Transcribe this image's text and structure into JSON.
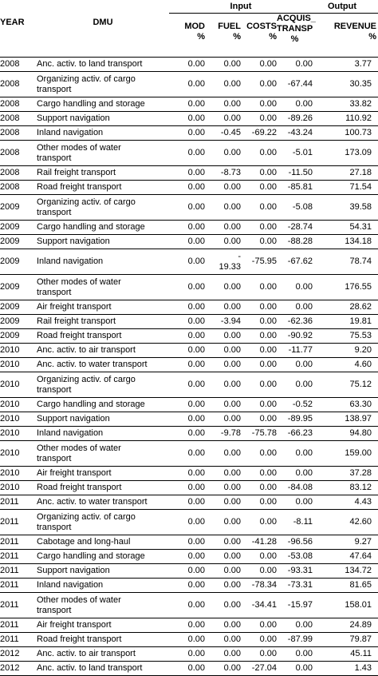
{
  "header": {
    "group_input": "Input",
    "group_output": "Output",
    "year": "YEAR",
    "dmu": "DMU",
    "mod": [
      "MOD",
      "%"
    ],
    "fuel": [
      "FUEL",
      "%"
    ],
    "costs": [
      "COSTS",
      "%"
    ],
    "acquis": [
      "ACQUIS_",
      "TRANSP",
      "%"
    ],
    "revenue": [
      "REVENUE",
      "%"
    ]
  },
  "rows": [
    {
      "year": "2008",
      "dmu": [
        "Anc. activ. to land transport"
      ],
      "mod": "0.00",
      "fuel": [
        "0.00"
      ],
      "costs": "0.00",
      "acquis": "0.00",
      "revenue": "3.77"
    },
    {
      "year": "2008",
      "dmu": [
        "Organizing activ. of cargo",
        "transport"
      ],
      "mod": "0.00",
      "fuel": [
        "0.00"
      ],
      "costs": "0.00",
      "acquis": "-67.44",
      "revenue": "30.35"
    },
    {
      "year": "2008",
      "dmu": [
        "Cargo handling and storage"
      ],
      "mod": "0.00",
      "fuel": [
        "0.00"
      ],
      "costs": "0.00",
      "acquis": "0.00",
      "revenue": "33.82"
    },
    {
      "year": "2008",
      "dmu": [
        "Support navigation"
      ],
      "mod": "0.00",
      "fuel": [
        "0.00"
      ],
      "costs": "0.00",
      "acquis": "-89.26",
      "revenue": "110.92"
    },
    {
      "year": "2008",
      "dmu": [
        "Inland navigation"
      ],
      "mod": "0.00",
      "fuel": [
        "-0.45"
      ],
      "costs": "-69.22",
      "acquis": "-43.24",
      "revenue": "100.73"
    },
    {
      "year": "2008",
      "dmu": [
        "Other modes of water",
        "transport"
      ],
      "mod": "0.00",
      "fuel": [
        "0.00"
      ],
      "costs": "0.00",
      "acquis": "-5.01",
      "revenue": "173.09"
    },
    {
      "year": "2008",
      "dmu": [
        "Rail freight transport"
      ],
      "mod": "0.00",
      "fuel": [
        "-8.73"
      ],
      "costs": "0.00",
      "acquis": "-11.50",
      "revenue": "27.18"
    },
    {
      "year": "2008",
      "dmu": [
        "Road freight transport"
      ],
      "mod": "0.00",
      "fuel": [
        "0.00"
      ],
      "costs": "0.00",
      "acquis": "-85.81",
      "revenue": "71.54"
    },
    {
      "year": "2009",
      "dmu": [
        "Organizing activ. of cargo",
        "transport"
      ],
      "mod": "0.00",
      "fuel": [
        "0.00"
      ],
      "costs": "0.00",
      "acquis": "-5.08",
      "revenue": "39.58"
    },
    {
      "year": "2009",
      "dmu": [
        "Cargo handling and storage"
      ],
      "mod": "0.00",
      "fuel": [
        "0.00"
      ],
      "costs": "0.00",
      "acquis": "-28.74",
      "revenue": "54.31"
    },
    {
      "year": "2009",
      "dmu": [
        "Support navigation"
      ],
      "mod": "0.00",
      "fuel": [
        "0.00"
      ],
      "costs": "0.00",
      "acquis": "-88.28",
      "revenue": "134.18"
    },
    {
      "year": "2009",
      "dmu": [
        "Inland navigation"
      ],
      "mod": "0.00",
      "fuel": [
        "-",
        "19.33"
      ],
      "costs": "-75.95",
      "acquis": "-67.62",
      "revenue": "78.74"
    },
    {
      "year": "2009",
      "dmu": [
        "Other modes of water",
        "transport"
      ],
      "mod": "0.00",
      "fuel": [
        "0.00"
      ],
      "costs": "0.00",
      "acquis": "0.00",
      "revenue": "176.55"
    },
    {
      "year": "2009",
      "dmu": [
        "Air freight transport"
      ],
      "mod": "0.00",
      "fuel": [
        "0.00"
      ],
      "costs": "0.00",
      "acquis": "0.00",
      "revenue": "28.62"
    },
    {
      "year": "2009",
      "dmu": [
        "Rail freight transport"
      ],
      "mod": "0.00",
      "fuel": [
        "-3.94"
      ],
      "costs": "0.00",
      "acquis": "-62.36",
      "revenue": "19.81"
    },
    {
      "year": "2009",
      "dmu": [
        "Road freight transport"
      ],
      "mod": "0.00",
      "fuel": [
        "0.00"
      ],
      "costs": "0.00",
      "acquis": "-90.92",
      "revenue": "75.53"
    },
    {
      "year": "2010",
      "dmu": [
        "Anc. activ. to air transport"
      ],
      "mod": "0.00",
      "fuel": [
        "0.00"
      ],
      "costs": "0.00",
      "acquis": "-11.77",
      "revenue": "9.20"
    },
    {
      "year": "2010",
      "dmu": [
        "Anc. activ. to water transport"
      ],
      "mod": "0.00",
      "fuel": [
        "0.00"
      ],
      "costs": "0.00",
      "acquis": "0.00",
      "revenue": "4.60"
    },
    {
      "year": "2010",
      "dmu": [
        "Organizing activ. of cargo",
        "transport"
      ],
      "mod": "0.00",
      "fuel": [
        "0.00"
      ],
      "costs": "0.00",
      "acquis": "0.00",
      "revenue": "75.12"
    },
    {
      "year": "2010",
      "dmu": [
        "Cargo handling and storage"
      ],
      "mod": "0.00",
      "fuel": [
        "0.00"
      ],
      "costs": "0.00",
      "acquis": "-0.52",
      "revenue": "63.30"
    },
    {
      "year": "2010",
      "dmu": [
        "Support navigation"
      ],
      "mod": "0.00",
      "fuel": [
        "0.00"
      ],
      "costs": "0.00",
      "acquis": "-89.95",
      "revenue": "138.97"
    },
    {
      "year": "2010",
      "dmu": [
        "Inland navigation"
      ],
      "mod": "0.00",
      "fuel": [
        "-9.78"
      ],
      "costs": "-75.78",
      "acquis": "-66.23",
      "revenue": "94.80"
    },
    {
      "year": "2010",
      "dmu": [
        "Other modes of water",
        "transport"
      ],
      "mod": "0.00",
      "fuel": [
        "0.00"
      ],
      "costs": "0.00",
      "acquis": "0.00",
      "revenue": "159.00"
    },
    {
      "year": "2010",
      "dmu": [
        "Air freight transport"
      ],
      "mod": "0.00",
      "fuel": [
        "0.00"
      ],
      "costs": "0.00",
      "acquis": "0.00",
      "revenue": "37.28"
    },
    {
      "year": "2010",
      "dmu": [
        "Road freight transport"
      ],
      "mod": "0.00",
      "fuel": [
        "0.00"
      ],
      "costs": "0.00",
      "acquis": "-84.08",
      "revenue": "83.12"
    },
    {
      "year": "2011",
      "dmu": [
        "Anc. activ. to water transport"
      ],
      "mod": "0.00",
      "fuel": [
        "0.00"
      ],
      "costs": "0.00",
      "acquis": "0.00",
      "revenue": "4.43"
    },
    {
      "year": "2011",
      "dmu": [
        "Organizing activ. of cargo",
        "transport"
      ],
      "mod": "0.00",
      "fuel": [
        "0.00"
      ],
      "costs": "0.00",
      "acquis": "-8.11",
      "revenue": "42.60"
    },
    {
      "year": "2011",
      "dmu": [
        "Cabotage and long-haul"
      ],
      "mod": "0.00",
      "fuel": [
        "0.00"
      ],
      "costs": "-41.28",
      "acquis": "-96.56",
      "revenue": "9.27"
    },
    {
      "year": "2011",
      "dmu": [
        "Cargo handling and storage"
      ],
      "mod": "0.00",
      "fuel": [
        "0.00"
      ],
      "costs": "0.00",
      "acquis": "-53.08",
      "revenue": "47.64"
    },
    {
      "year": "2011",
      "dmu": [
        "Support navigation"
      ],
      "mod": "0.00",
      "fuel": [
        "0.00"
      ],
      "costs": "0.00",
      "acquis": "-93.31",
      "revenue": "134.72"
    },
    {
      "year": "2011",
      "dmu": [
        "Inland navigation"
      ],
      "mod": "0.00",
      "fuel": [
        "0.00"
      ],
      "costs": "-78.34",
      "acquis": "-73.31",
      "revenue": "81.65"
    },
    {
      "year": "2011",
      "dmu": [
        "Other modes of water",
        "transport"
      ],
      "mod": "0.00",
      "fuel": [
        "0.00"
      ],
      "costs": "-34.41",
      "acquis": "-15.97",
      "revenue": "158.01"
    },
    {
      "year": "2011",
      "dmu": [
        "Air freight transport"
      ],
      "mod": "0.00",
      "fuel": [
        "0.00"
      ],
      "costs": "0.00",
      "acquis": "0.00",
      "revenue": "24.89"
    },
    {
      "year": "2011",
      "dmu": [
        "Road freight transport"
      ],
      "mod": "0.00",
      "fuel": [
        "0.00"
      ],
      "costs": "0.00",
      "acquis": "-87.99",
      "revenue": "79.87"
    },
    {
      "year": "2012",
      "dmu": [
        "Anc. activ. to air transport"
      ],
      "mod": "0.00",
      "fuel": [
        "0.00"
      ],
      "costs": "0.00",
      "acquis": "0.00",
      "revenue": "45.11"
    },
    {
      "year": "2012",
      "dmu": [
        "Anc. activ. to land transport"
      ],
      "mod": "0.00",
      "fuel": [
        "0.00"
      ],
      "costs": "-27.04",
      "acquis": "0.00",
      "revenue": "1.43"
    }
  ]
}
